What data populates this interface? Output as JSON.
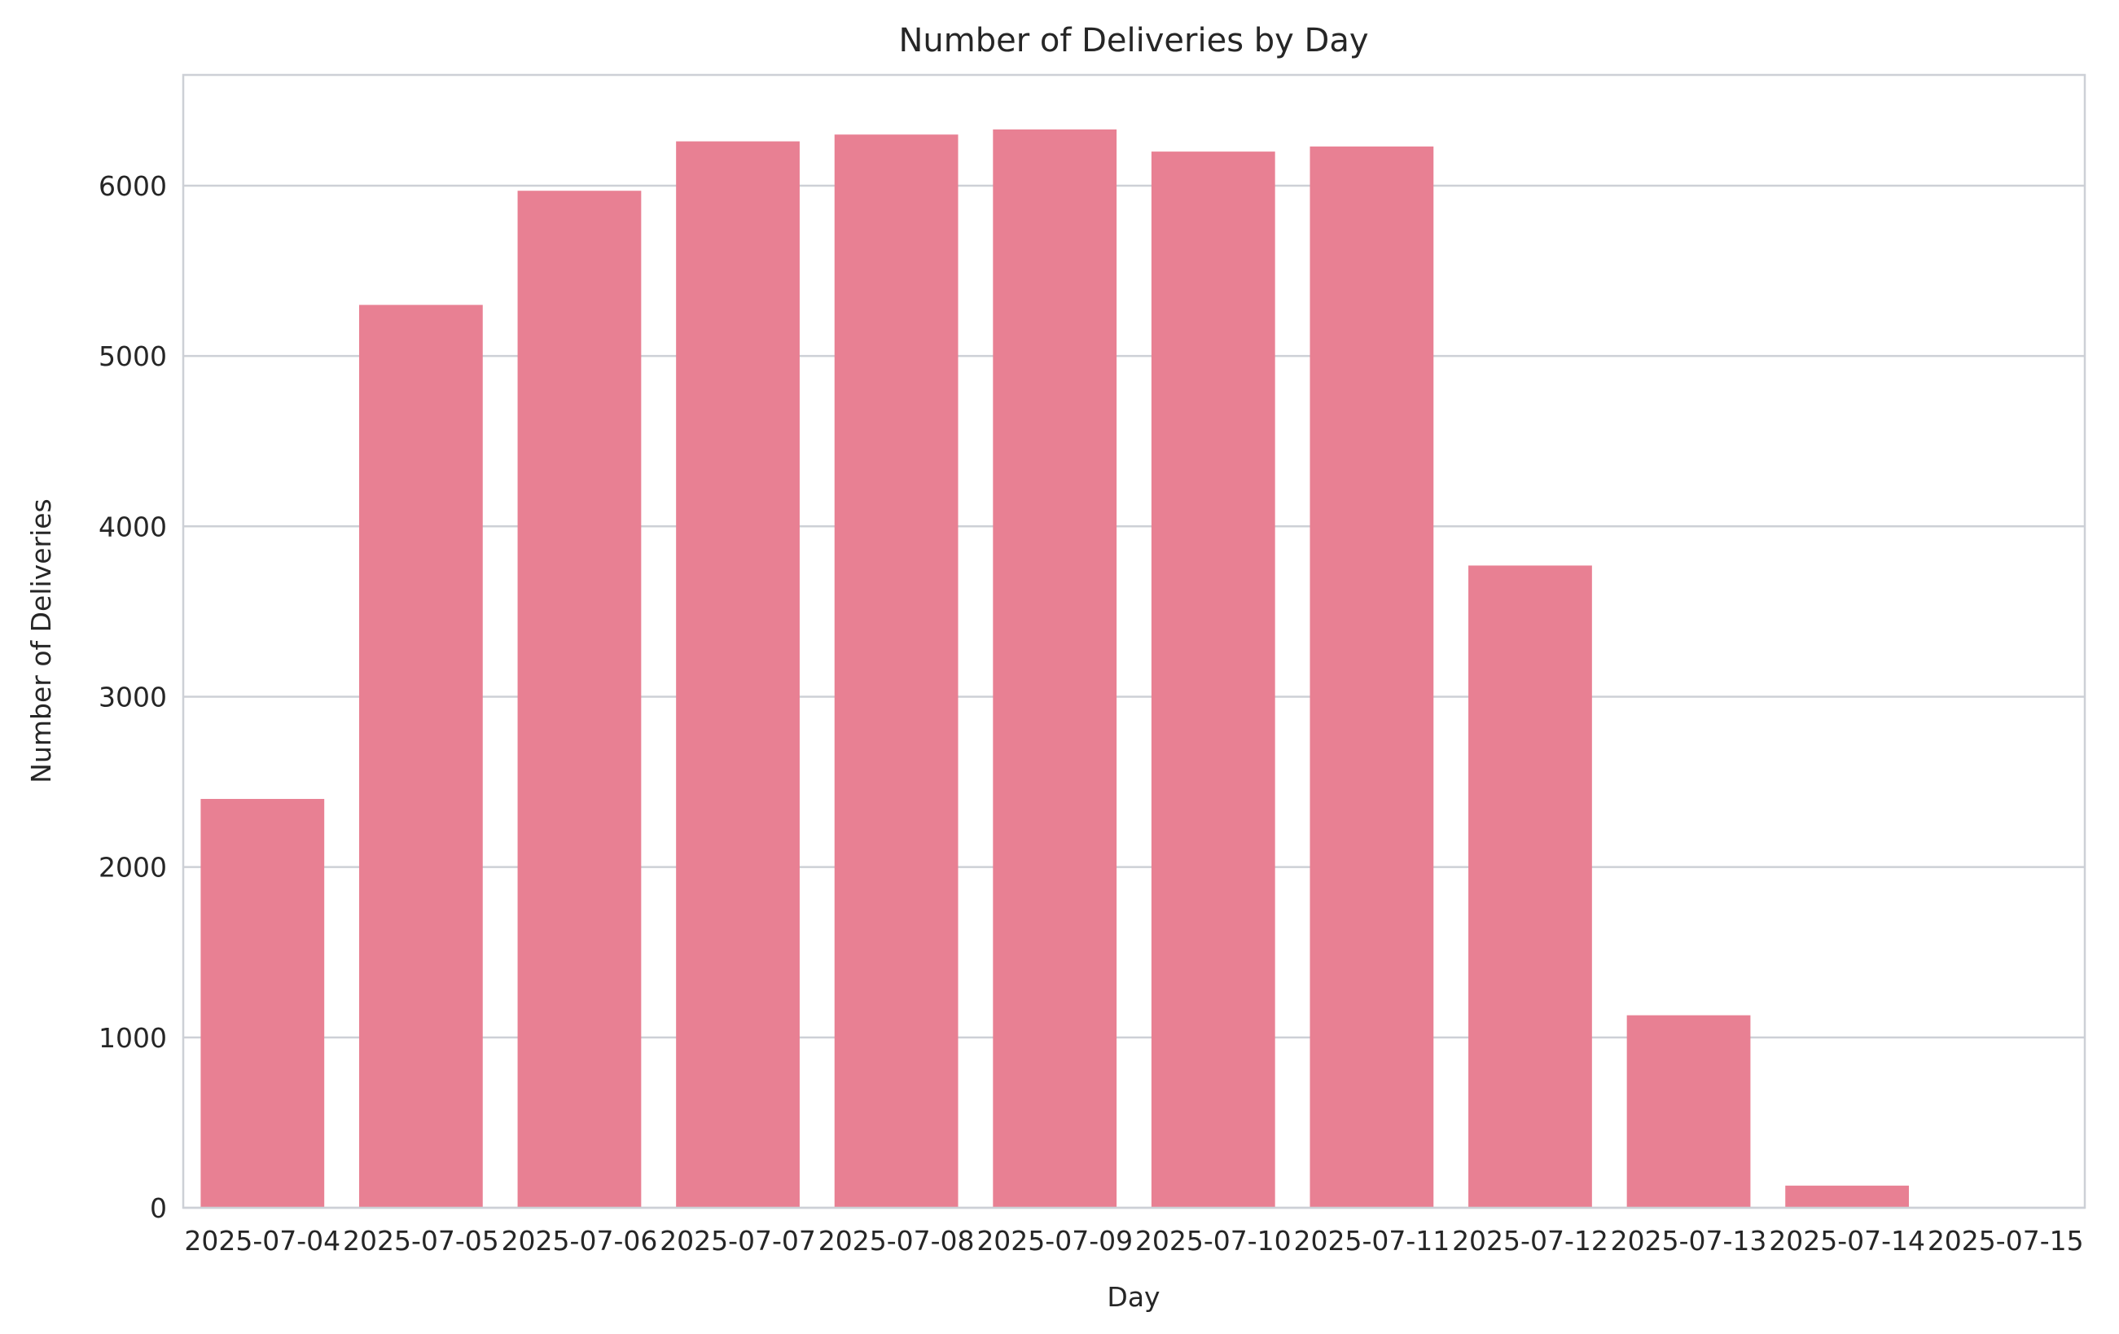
{
  "chart_data": {
    "type": "bar",
    "title": "Number of Deliveries by Day",
    "xlabel": "Day",
    "ylabel": "Number of Deliveries",
    "categories": [
      "2025-07-04",
      "2025-07-05",
      "2025-07-06",
      "2025-07-07",
      "2025-07-08",
      "2025-07-09",
      "2025-07-10",
      "2025-07-11",
      "2025-07-12",
      "2025-07-13",
      "2025-07-14",
      "2025-07-15"
    ],
    "values": [
      2400,
      5300,
      5970,
      6260,
      6300,
      6330,
      6200,
      6230,
      3770,
      1130,
      130,
      0
    ],
    "ylim": [
      0,
      6650
    ],
    "yticks": [
      "0",
      "1000",
      "2000",
      "3000",
      "4000",
      "5000",
      "6000"
    ],
    "grid": "horizontal",
    "legend": "none",
    "bar_color": "#e88093",
    "grid_color": "#cdd0d6"
  }
}
